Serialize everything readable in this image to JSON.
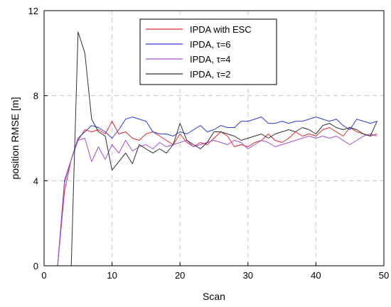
{
  "chart_data": {
    "type": "line",
    "xlabel": "Scan",
    "ylabel": "position RMSE [m]",
    "xlim": [
      0,
      50
    ],
    "ylim": [
      0,
      12
    ],
    "xticks": [
      0,
      10,
      20,
      30,
      40,
      50
    ],
    "yticks": [
      0,
      4,
      8,
      12
    ],
    "grid": true,
    "legend_position": "top-center",
    "series": [
      {
        "name": "IPDA with ESC",
        "color": "#e8262c",
        "x": [
          1,
          2,
          3,
          4,
          5,
          6,
          7,
          8,
          9,
          10,
          11,
          12,
          13,
          14,
          15,
          16,
          17,
          18,
          19,
          20,
          21,
          22,
          23,
          24,
          25,
          26,
          27,
          28,
          29,
          30,
          31,
          32,
          33,
          34,
          35,
          36,
          37,
          38,
          39,
          40,
          41,
          42,
          43,
          44,
          45,
          46,
          47,
          48,
          49
        ],
        "y": [
          0,
          0,
          3.5,
          5.0,
          5.9,
          6.4,
          6.3,
          6.4,
          6.2,
          6.8,
          6.2,
          6.3,
          6.0,
          5.9,
          6.2,
          6.3,
          6.1,
          5.9,
          5.7,
          6.2,
          5.8,
          5.6,
          5.8,
          5.7,
          6.0,
          6.3,
          6.1,
          5.6,
          5.7,
          5.6,
          5.8,
          5.9,
          6.2,
          5.9,
          5.8,
          6.0,
          6.3,
          6.1,
          6.2,
          6.1,
          6.4,
          6.5,
          6.3,
          6.1,
          6.5,
          6.3,
          6.2,
          6.1,
          6.2
        ]
      },
      {
        "name": "IPDA, τ=6",
        "color": "#2b3de0",
        "x": [
          1,
          2,
          3,
          4,
          5,
          6,
          7,
          8,
          9,
          10,
          11,
          12,
          13,
          14,
          15,
          16,
          17,
          18,
          19,
          20,
          21,
          22,
          23,
          24,
          25,
          26,
          27,
          28,
          29,
          30,
          31,
          32,
          33,
          34,
          35,
          36,
          37,
          38,
          39,
          40,
          41,
          42,
          43,
          44,
          45,
          46,
          47,
          48,
          49
        ],
        "y": [
          0,
          0,
          4.0,
          5.0,
          6.0,
          6.3,
          6.6,
          6.5,
          6.3,
          6.0,
          6.4,
          6.9,
          7.0,
          6.9,
          6.8,
          6.3,
          6.2,
          6.2,
          6.1,
          6.3,
          6.2,
          6.4,
          6.6,
          6.3,
          6.4,
          6.6,
          6.5,
          6.5,
          6.8,
          6.8,
          6.9,
          7.0,
          6.7,
          6.7,
          6.8,
          6.7,
          6.8,
          6.8,
          6.9,
          7.0,
          6.9,
          6.8,
          6.9,
          6.6,
          6.4,
          6.9,
          6.8,
          6.7,
          6.8
        ]
      },
      {
        "name": "IPDA, τ=4",
        "color": "#a64cd8",
        "x": [
          1,
          2,
          3,
          4,
          5,
          6,
          7,
          8,
          9,
          10,
          11,
          12,
          13,
          14,
          15,
          16,
          17,
          18,
          19,
          20,
          21,
          22,
          23,
          24,
          25,
          26,
          27,
          28,
          29,
          30,
          31,
          32,
          33,
          34,
          35,
          36,
          37,
          38,
          39,
          40,
          41,
          42,
          43,
          44,
          45,
          46,
          47,
          48,
          49
        ],
        "y": [
          0,
          0,
          3.9,
          5.0,
          5.9,
          6.0,
          4.9,
          5.6,
          5.0,
          5.7,
          5.3,
          5.9,
          5.4,
          5.6,
          5.7,
          5.5,
          5.8,
          5.6,
          5.7,
          5.8,
          5.9,
          5.6,
          5.7,
          5.8,
          5.9,
          5.8,
          5.7,
          5.9,
          5.8,
          5.5,
          5.7,
          5.9,
          5.8,
          5.6,
          5.7,
          5.8,
          5.9,
          6.0,
          6.1,
          6.0,
          6.1,
          6.0,
          6.1,
          5.9,
          5.7,
          5.9,
          6.1,
          6.2,
          6.1
        ]
      },
      {
        "name": "IPDA, τ=2",
        "color": "#2f2f2f",
        "x": [
          1,
          2,
          3,
          4,
          5,
          6,
          7,
          8,
          9,
          10,
          11,
          12,
          13,
          14,
          15,
          16,
          17,
          18,
          19,
          20,
          21,
          22,
          23,
          24,
          25,
          26,
          27,
          28,
          29,
          30,
          31,
          32,
          33,
          34,
          35,
          36,
          37,
          38,
          39,
          40,
          41,
          42,
          43,
          44,
          45,
          46,
          47,
          48,
          49
        ],
        "y": [
          0,
          0,
          0,
          0,
          11.0,
          10.0,
          6.9,
          6.3,
          6.1,
          4.5,
          4.9,
          5.3,
          4.8,
          5.7,
          5.5,
          5.3,
          5.5,
          5.3,
          5.7,
          6.7,
          5.9,
          5.7,
          5.5,
          5.8,
          6.3,
          6.3,
          6.2,
          6.1,
          5.9,
          6.0,
          6.1,
          6.2,
          6.0,
          6.2,
          6.3,
          6.4,
          6.3,
          6.5,
          6.4,
          6.2,
          6.6,
          6.7,
          6.5,
          6.4,
          6.5,
          6.4,
          6.2,
          6.1,
          6.8
        ]
      }
    ]
  }
}
